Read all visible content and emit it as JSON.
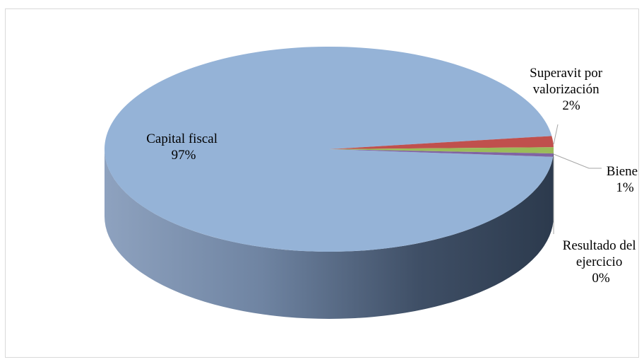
{
  "chart_data": {
    "type": "pie",
    "title": "",
    "three_d": true,
    "legend": "none",
    "slices": [
      {
        "name": "Capital fiscal",
        "value": 97,
        "label": "97%",
        "color": "#95B3D7"
      },
      {
        "name": "Superavit por valorización",
        "value": 2,
        "label": "2%",
        "color": "#C0504D"
      },
      {
        "name": "Bienes",
        "value": 1,
        "label": "1%",
        "color": "#9BBB59"
      },
      {
        "name": "Resultado del ejercicio",
        "value": 0,
        "label": "0%",
        "color": "#8064A2"
      }
    ]
  },
  "label_lines": {
    "capital": [
      "Capital fiscal",
      "97%"
    ],
    "superavit": [
      "Superavit por",
      "valorización",
      "2%"
    ],
    "bienes": [
      "Bienes",
      "1%"
    ],
    "resultado": [
      "Resultado del",
      "ejercicio",
      "0%"
    ]
  }
}
